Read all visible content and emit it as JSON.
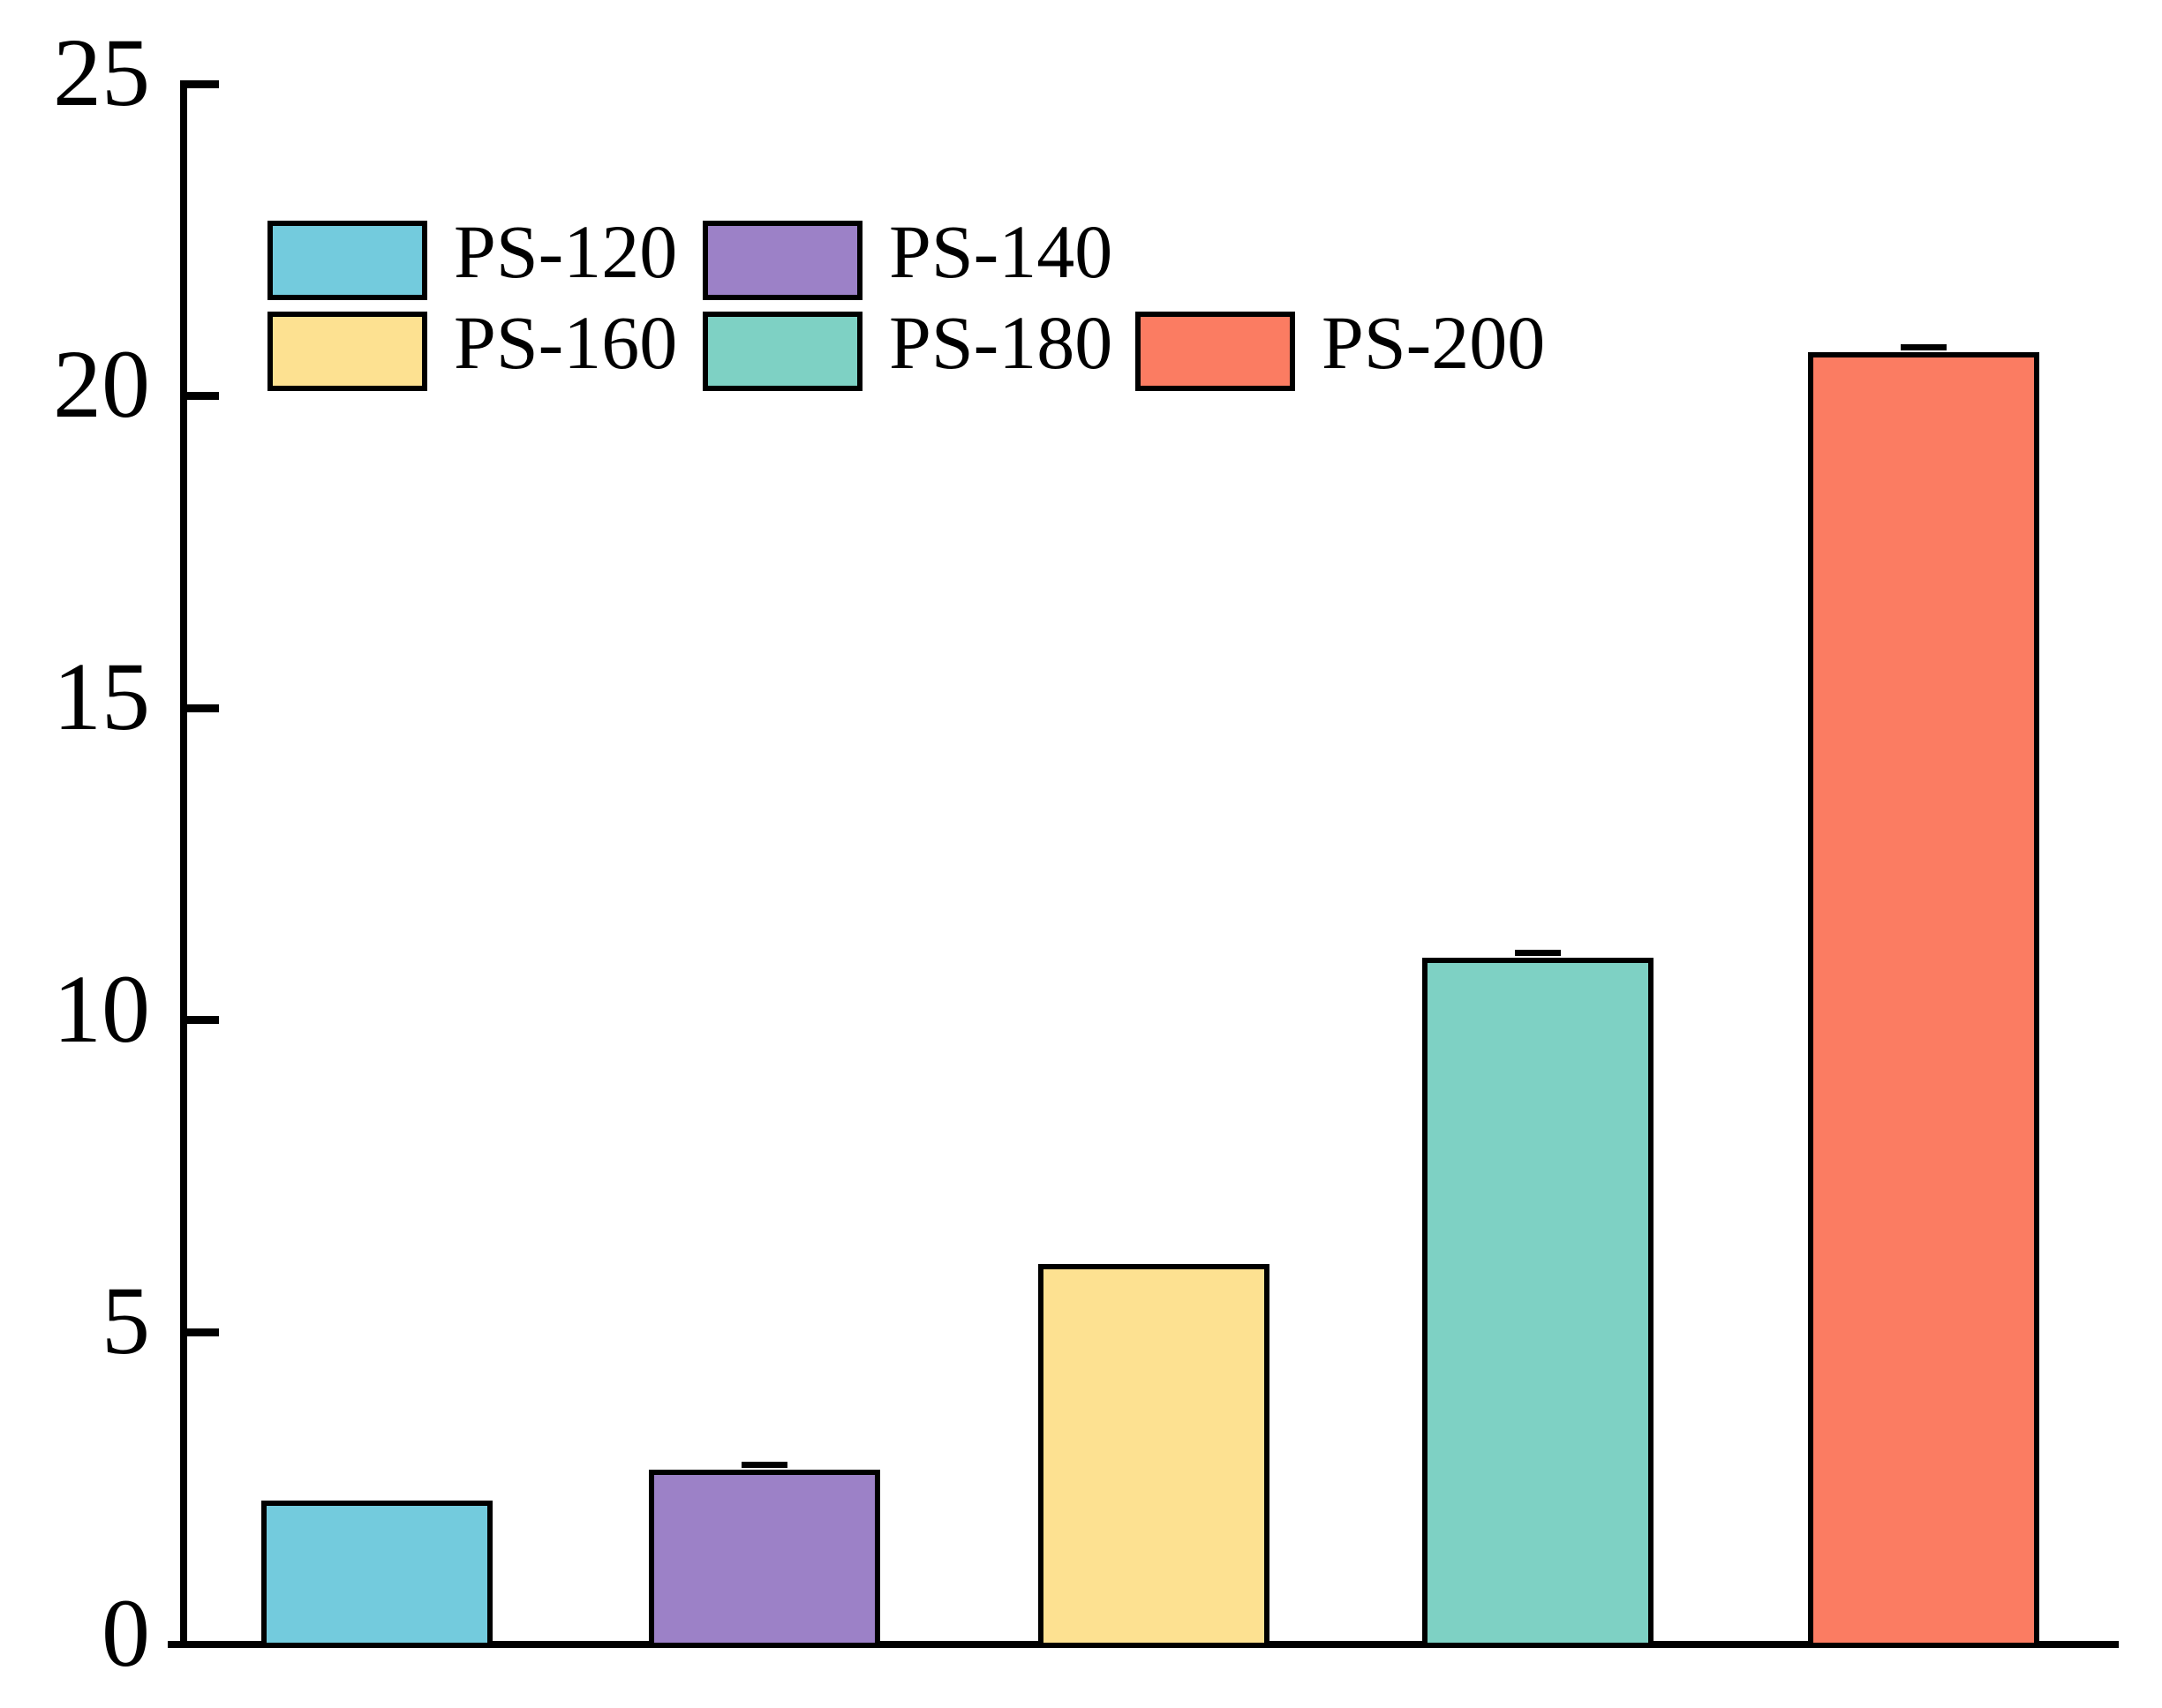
{
  "chart_data": {
    "type": "bar",
    "title": "",
    "xlabel": "",
    "ylabel": "",
    "categories": [
      "PS-120",
      "PS-140",
      "PS-160",
      "PS-180",
      "PS-200"
    ],
    "values": [
      2.3,
      2.8,
      6.1,
      11.0,
      20.7
    ],
    "colors": [
      "#73CBDD",
      "#9C81C7",
      "#FDE191",
      "#7ED1C4",
      "#FB7C62"
    ],
    "bar_border_color": "#000000",
    "error_caps": [
      false,
      true,
      false,
      true,
      true
    ],
    "ylim": [
      0,
      25
    ],
    "yticks": [
      0,
      5,
      10,
      15,
      20,
      25
    ],
    "x_tick_labels_visible": false,
    "grid": false,
    "axis_color": "#000000",
    "background_color": "#ffffff",
    "legend": {
      "position": "upper-left",
      "rows": [
        [
          "PS-120",
          "PS-140"
        ],
        [
          "PS-160",
          "PS-180",
          "PS-200"
        ]
      ],
      "entries": [
        {
          "label": "PS-120",
          "color": "#73CBDD"
        },
        {
          "label": "PS-140",
          "color": "#9C81C7"
        },
        {
          "label": "PS-160",
          "color": "#FDE191"
        },
        {
          "label": "PS-180",
          "color": "#7ED1C4"
        },
        {
          "label": "PS-200",
          "color": "#FB7C62"
        }
      ]
    }
  }
}
